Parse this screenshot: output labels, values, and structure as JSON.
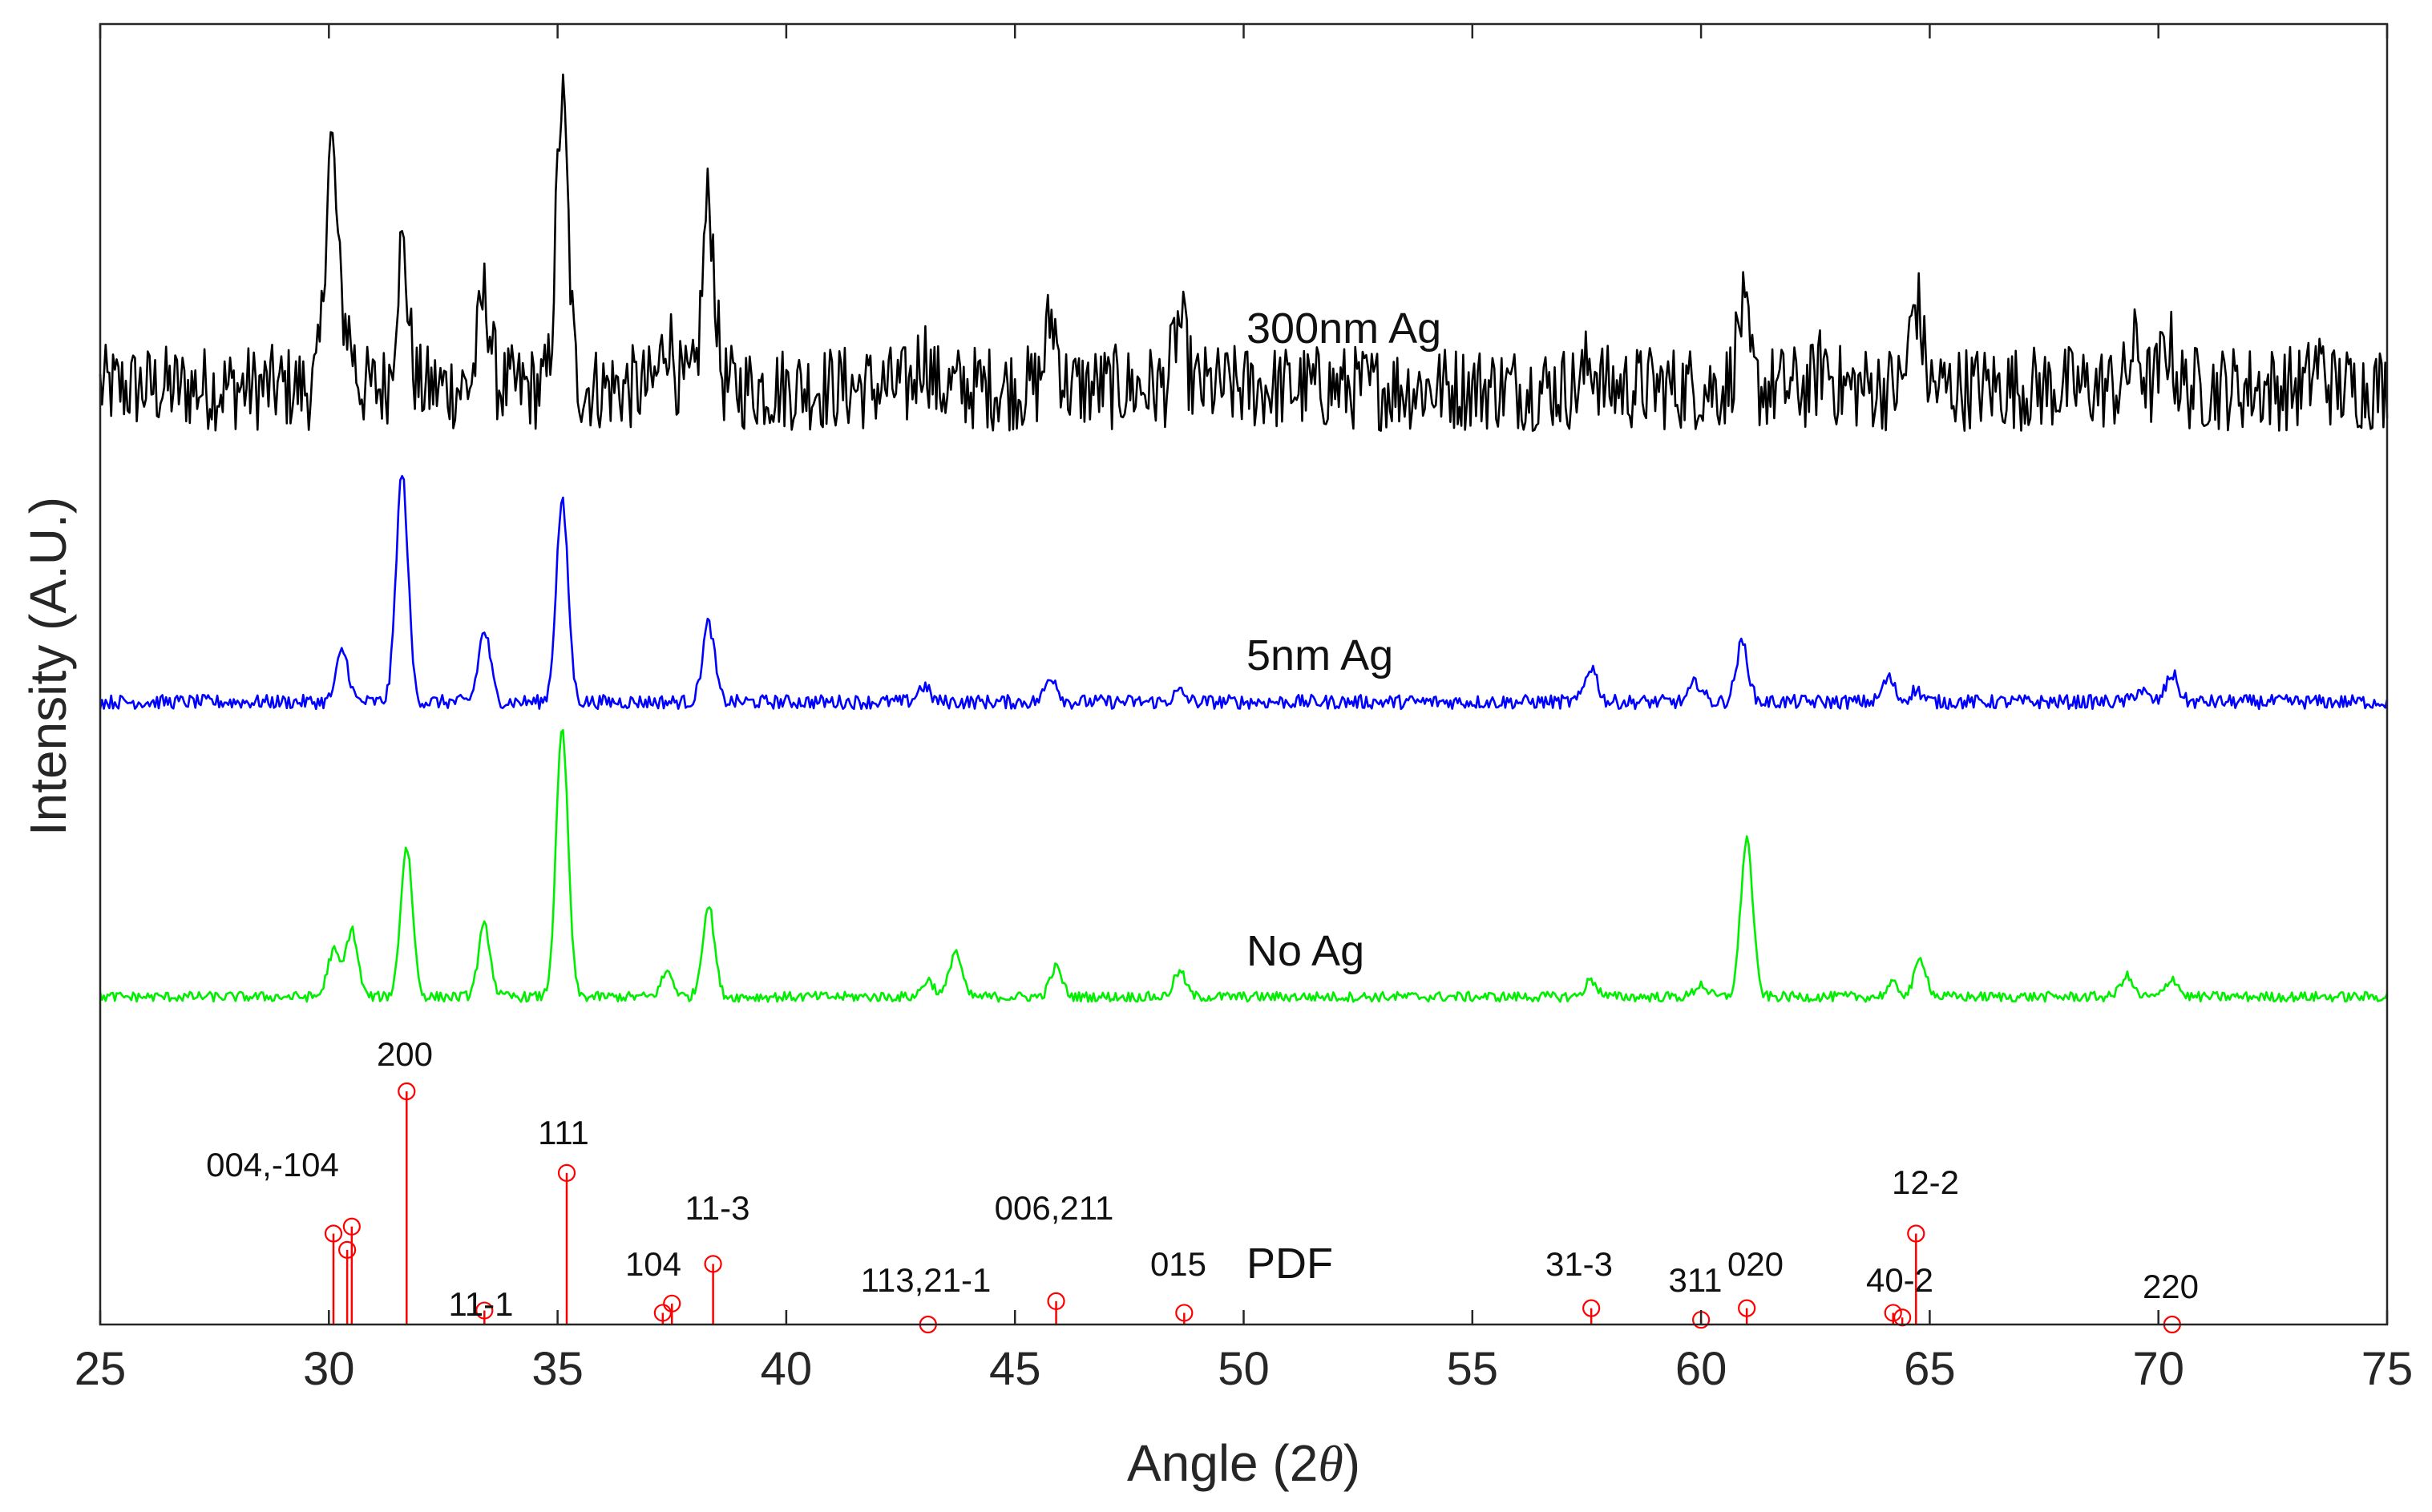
{
  "chart_data": {
    "type": "line",
    "title": "",
    "xlabel": "Angle (2θ)",
    "xlabel_text": "Angle (2",
    "xlabel_symbol": "θ",
    "xlabel_close": ")",
    "ylabel": "Intensity (A.U.)",
    "xlim": [
      25,
      75
    ],
    "xticks": [
      25,
      30,
      35,
      40,
      45,
      50,
      55,
      60,
      65,
      70,
      75
    ],
    "yticks": [],
    "grid": false,
    "series": [
      {
        "name": "300nm Ag",
        "color": "#000000",
        "noise": 1.0,
        "background": 0.3,
        "peaks": [
          [
            30.05,
            5.6
          ],
          [
            30.4,
            1.3
          ],
          [
            31.6,
            3.2
          ],
          [
            33.4,
            2.1
          ],
          [
            35.1,
            6.6
          ],
          [
            37.4,
            1.2
          ],
          [
            38.3,
            4.3
          ],
          [
            43.0,
            0.8
          ],
          [
            45.8,
            1.6
          ],
          [
            48.6,
            1.5
          ],
          [
            57.6,
            0.6
          ],
          [
            60.9,
            1.7
          ],
          [
            62.7,
            0.6
          ],
          [
            64.7,
            2.0
          ],
          [
            69.5,
            0.9
          ],
          [
            70.2,
            1.0
          ],
          [
            73.5,
            0.6
          ]
        ]
      },
      {
        "name": "5nm Ag",
        "color": "#0000ff",
        "noise": 0.18,
        "background": 0.0,
        "peaks": [
          [
            30.3,
            1.3
          ],
          [
            31.6,
            5.8
          ],
          [
            33.4,
            1.8
          ],
          [
            35.1,
            5.1
          ],
          [
            38.3,
            2.0
          ],
          [
            43.0,
            0.4
          ],
          [
            45.8,
            0.65
          ],
          [
            48.6,
            0.25
          ],
          [
            57.6,
            0.9
          ],
          [
            59.9,
            0.5
          ],
          [
            60.9,
            1.5
          ],
          [
            64.1,
            0.6
          ],
          [
            64.7,
            0.3
          ],
          [
            69.6,
            0.3
          ],
          [
            70.3,
            0.7
          ]
        ]
      },
      {
        "name": "No Ag",
        "color": "#00ee00",
        "noise": 0.12,
        "background": 0.0,
        "peaks": [
          [
            30.1,
            1.1
          ],
          [
            30.5,
            1.6
          ],
          [
            31.7,
            3.6
          ],
          [
            33.4,
            1.7
          ],
          [
            35.1,
            6.4
          ],
          [
            37.4,
            0.6
          ],
          [
            38.3,
            2.2
          ],
          [
            43.1,
            0.4
          ],
          [
            43.7,
            1.1
          ],
          [
            45.9,
            0.7
          ],
          [
            48.6,
            0.6
          ],
          [
            57.6,
            0.4
          ],
          [
            60.0,
            0.3
          ],
          [
            61.0,
            3.8
          ],
          [
            64.2,
            0.3
          ],
          [
            64.8,
            0.9
          ],
          [
            69.3,
            0.5
          ],
          [
            70.3,
            0.45
          ]
        ]
      },
      {
        "name": "PDF",
        "type": "stem",
        "color": "#ff0000",
        "points": [
          {
            "x": 30.1,
            "y": 0.39,
            "label": ""
          },
          {
            "x": 30.4,
            "y": 0.32,
            "label": ""
          },
          {
            "x": 30.5,
            "y": 0.42,
            "label": "004,-104"
          },
          {
            "x": 31.7,
            "y": 1.0,
            "label": "200"
          },
          {
            "x": 33.4,
            "y": 0.06,
            "label": "11-1"
          },
          {
            "x": 35.2,
            "y": 0.65,
            "label": "111"
          },
          {
            "x": 37.3,
            "y": 0.05,
            "label": ""
          },
          {
            "x": 37.5,
            "y": 0.09,
            "label": "104"
          },
          {
            "x": 38.4,
            "y": 0.26,
            "label": "11-3"
          },
          {
            "x": 43.1,
            "y": 0.0,
            "label": "113,21-1"
          },
          {
            "x": 45.9,
            "y": 0.1,
            "label": "006,211"
          },
          {
            "x": 48.7,
            "y": 0.05,
            "label": "015"
          },
          {
            "x": 57.6,
            "y": 0.07,
            "label": "31-3"
          },
          {
            "x": 60.0,
            "y": 0.02,
            "label": "311"
          },
          {
            "x": 61.0,
            "y": 0.07,
            "label": "020"
          },
          {
            "x": 64.2,
            "y": 0.05,
            "label": "40-2"
          },
          {
            "x": 64.4,
            "y": 0.03,
            "label": ""
          },
          {
            "x": 64.7,
            "y": 0.39,
            "label": "12-2"
          },
          {
            "x": 70.3,
            "y": 0.0,
            "label": "220"
          }
        ]
      }
    ]
  }
}
